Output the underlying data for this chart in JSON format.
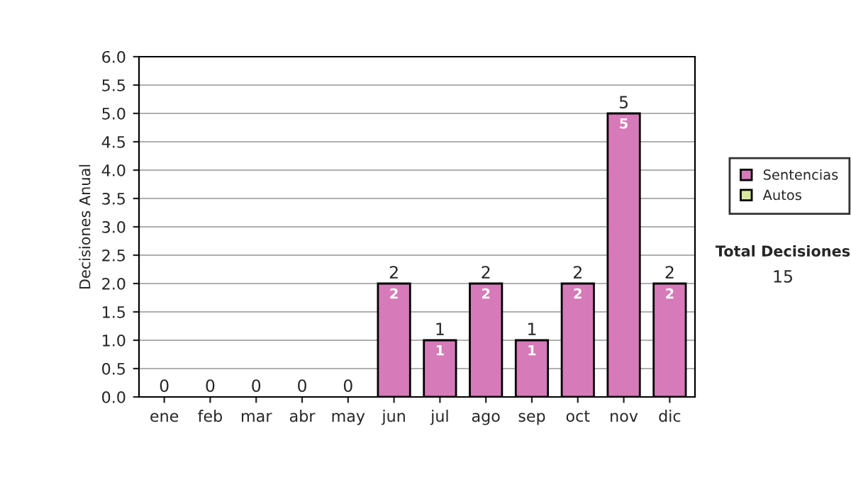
{
  "chart_data": {
    "type": "bar",
    "ylabel": "Decisiones Anual",
    "stacked": true,
    "categories": [
      "ene",
      "feb",
      "mar",
      "abr",
      "may",
      "jun",
      "jul",
      "ago",
      "sep",
      "oct",
      "nov",
      "dic"
    ],
    "series": [
      {
        "name": "Sentencias",
        "color": "#d67ab9",
        "values": [
          0,
          0,
          0,
          0,
          0,
          2,
          1,
          2,
          1,
          2,
          5,
          2
        ],
        "value_labels": [
          null,
          null,
          null,
          null,
          null,
          "2",
          "1",
          "2",
          "1",
          "2",
          "5",
          "2"
        ]
      },
      {
        "name": "Autos",
        "color": "#d8e8a0",
        "values": [
          0,
          0,
          0,
          0,
          0,
          0,
          0,
          0,
          0,
          0,
          0,
          0
        ]
      }
    ],
    "totals": [
      "0",
      "0",
      "0",
      "0",
      "0",
      "2",
      "1",
      "2",
      "1",
      "2",
      "5",
      "2"
    ],
    "ylim": [
      0,
      6
    ],
    "yticks": [
      {
        "value": 0,
        "label": "0.0"
      },
      {
        "value": 0.5,
        "label": "0.5"
      },
      {
        "value": 1,
        "label": "1.0"
      },
      {
        "value": 1.5,
        "label": "1.5"
      },
      {
        "value": 2,
        "label": "2.0"
      },
      {
        "value": 2.5,
        "label": "2.5"
      },
      {
        "value": 3,
        "label": "3.0"
      },
      {
        "value": 3.5,
        "label": "3.5"
      },
      {
        "value": 4,
        "label": "4.0"
      },
      {
        "value": 4.5,
        "label": "4.5"
      },
      {
        "value": 5,
        "label": "5.0"
      },
      {
        "value": 5.5,
        "label": "5.5"
      },
      {
        "value": 6,
        "label": "6.0"
      }
    ],
    "grid": "y",
    "legend": "right",
    "annotations": [
      "Total Decisiones",
      "15"
    ]
  }
}
